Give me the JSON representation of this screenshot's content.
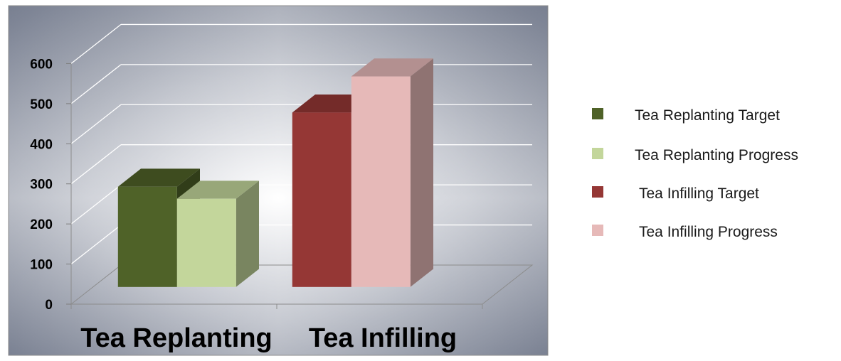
{
  "chart_data": {
    "type": "bar",
    "title": "",
    "xlabel": "",
    "ylabel": "",
    "ylim": [
      0,
      600
    ],
    "yticks": [
      0,
      100,
      200,
      300,
      400,
      500,
      600
    ],
    "categories": [
      "Tea Replanting",
      "Tea Infilling"
    ],
    "series": [
      {
        "name": "Tea Replanting Target",
        "values": [
          250,
          null
        ],
        "color": "#4f6228"
      },
      {
        "name": "Tea Replanting Progress",
        "values": [
          220,
          null
        ],
        "color": "#c3d69b"
      },
      {
        "name": "Tea Infilling Target",
        "values": [
          null,
          435
        ],
        "color": "#953735"
      },
      {
        "name": "Tea Infilling Progress",
        "values": [
          null,
          525
        ],
        "color": "#e6b9b8"
      }
    ],
    "grid": true,
    "legend": "right",
    "style": "3d-clustered-column"
  }
}
